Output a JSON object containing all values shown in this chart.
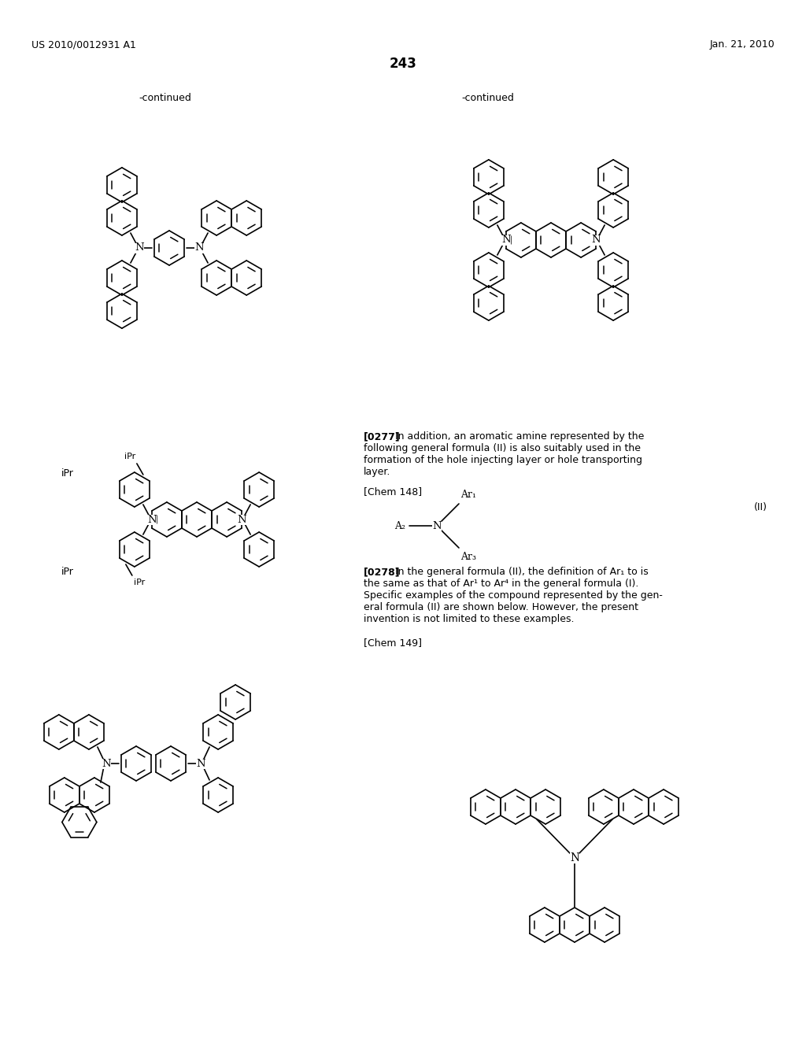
{
  "page_header_left": "US 2010/0012931 A1",
  "page_header_right": "Jan. 21, 2010",
  "page_number": "243",
  "continued_left": "-continued",
  "continued_right": "-continued",
  "chem148_label": "[Chem 148]",
  "formula_II_label": "(II)",
  "chem149_label": "[Chem 149]",
  "background_color": "#ffffff",
  "text_color": "#000000"
}
